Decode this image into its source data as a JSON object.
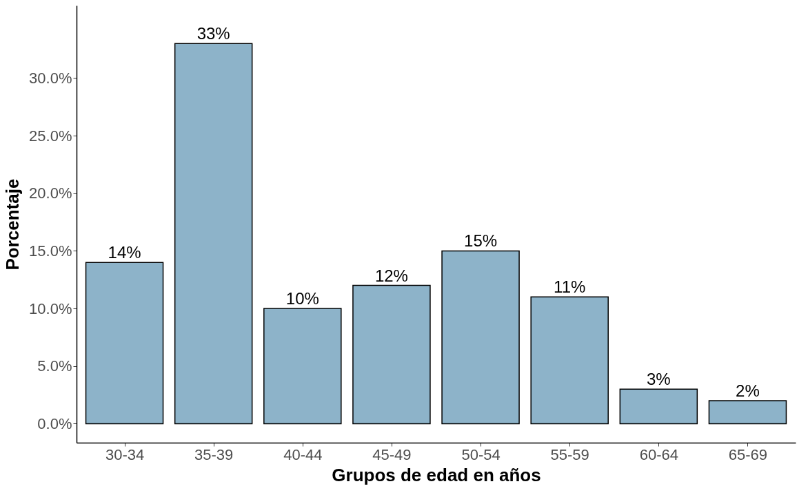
{
  "chart_data": {
    "type": "bar",
    "xlabel": "Grupos de edad en años",
    "ylabel": "Porcentaje",
    "categories": [
      "30-34",
      "35-39",
      "40-44",
      "45-49",
      "50-54",
      "55-59",
      "60-64",
      "65-69"
    ],
    "values": [
      14,
      33,
      10,
      12,
      15,
      11,
      3,
      2
    ],
    "value_labels": [
      "14%",
      "33%",
      "10%",
      "12%",
      "15%",
      "11%",
      "3%",
      "2%"
    ],
    "color": "#8db3c9",
    "ylim": [
      -1.65,
      36.3
    ],
    "yticks": [
      {
        "value": 0,
        "label": "0.0%"
      },
      {
        "value": 5,
        "label": "5.0%"
      },
      {
        "value": 10,
        "label": "10.0%"
      },
      {
        "value": 15,
        "label": "15.0%"
      },
      {
        "value": 20,
        "label": "20.0%"
      },
      {
        "value": 25,
        "label": "25.0%"
      },
      {
        "value": 30,
        "label": "30.0%"
      }
    ],
    "grid": false
  }
}
